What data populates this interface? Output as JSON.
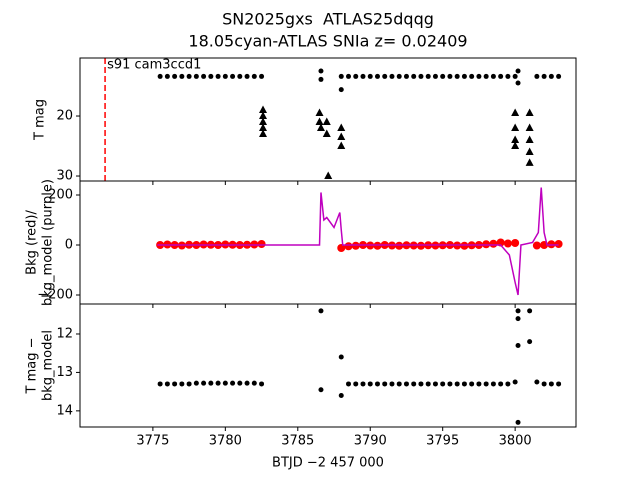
{
  "chart_data": [
    {
      "type": "scatter",
      "title": [
        "SN2025gxs  ATLAS25dqqg",
        "18.05cyan-ATLAS SNIa z= 0.02409"
      ],
      "ylabel": [
        "T mag"
      ],
      "annotation": "s91 cam3ccd1",
      "vline": 3771.7,
      "vline_color": "#ff0000",
      "xlim": [
        3769.97,
        3804.2
      ],
      "ylim": [
        30.83,
        10.33
      ],
      "yticks": [
        20,
        30
      ],
      "series": [
        {
          "color": "#000000",
          "marker": "circle",
          "x": [
            3775.5,
            3776,
            3776.5,
            3777,
            3777.5,
            3778,
            3778.5,
            3779,
            3779.5,
            3780,
            3780.5,
            3781,
            3781.5,
            3782,
            3782.5,
            3786.6,
            3786.6,
            3788,
            3788,
            3788.5,
            3789,
            3789.5,
            3790,
            3790.5,
            3791,
            3791.5,
            3792,
            3792.5,
            3793,
            3793.5,
            3794,
            3794.5,
            3795,
            3795.5,
            3796,
            3796.5,
            3797,
            3797.5,
            3798,
            3798.5,
            3799,
            3799.5,
            3800,
            3800.2,
            3800.2,
            3801.5,
            3802,
            3802.5,
            3803
          ],
          "values": [
            13.4,
            13.4,
            13.4,
            13.4,
            13.4,
            13.4,
            13.4,
            13.4,
            13.4,
            13.4,
            13.4,
            13.4,
            13.4,
            13.4,
            13.4,
            12.5,
            13.9,
            13.4,
            15.6,
            13.4,
            13.4,
            13.4,
            13.4,
            13.4,
            13.4,
            13.4,
            13.4,
            13.4,
            13.4,
            13.4,
            13.4,
            13.4,
            13.4,
            13.4,
            13.4,
            13.4,
            13.4,
            13.4,
            13.4,
            13.4,
            13.4,
            13.4,
            13.4,
            12.5,
            14.5,
            13.4,
            13.4,
            13.4,
            13.4
          ]
        },
        {
          "color": "#000000",
          "marker": "triangle",
          "x": [
            3782.6,
            3782.6,
            3782.6,
            3782.6,
            3782.6,
            3786.5,
            3786.5,
            3786.6,
            3787,
            3787,
            3787.1,
            3788,
            3788,
            3788,
            3800,
            3800,
            3800,
            3800,
            3801,
            3801,
            3801,
            3801,
            3801
          ],
          "values": [
            19,
            20,
            21,
            22,
            23,
            19.5,
            21,
            22,
            21,
            23,
            30,
            22,
            23.5,
            25,
            19.5,
            22,
            25,
            24,
            19.5,
            22,
            24,
            26,
            27.8
          ]
        }
      ]
    },
    {
      "type": "scatter",
      "ylabel": [
        "Bkg (red)/",
        "bkg_model (purple)"
      ],
      "xlim": [
        3769.97,
        3804.2
      ],
      "ylim": [
        -236,
        256
      ],
      "yticks": [
        200,
        0,
        {
          "value": -200,
          "label": "−200"
        }
      ],
      "series": [
        {
          "color": "#ff0000",
          "marker": "big-circle",
          "x": [
            3775.5,
            3776,
            3776.5,
            3777,
            3777.5,
            3778,
            3778.5,
            3779,
            3779.5,
            3780,
            3780.5,
            3781,
            3781.5,
            3782,
            3782.5,
            3788,
            3788.5,
            3789,
            3789.5,
            3790,
            3790.5,
            3791,
            3791.5,
            3792,
            3792.5,
            3793,
            3793.5,
            3794,
            3794.5,
            3795,
            3795.5,
            3796,
            3796.5,
            3797,
            3797.5,
            3798,
            3798.5,
            3799,
            3799.5,
            3800,
            3801.5,
            3802,
            3802.5,
            3803
          ],
          "values": [
            0,
            2,
            0,
            -2,
            1,
            0,
            2,
            1,
            0,
            2,
            1,
            0,
            1,
            2,
            4,
            -12,
            -5,
            -3,
            0,
            -2,
            -3,
            0,
            -2,
            -3,
            -1,
            -2,
            -3,
            -1,
            -2,
            -1,
            0,
            -2,
            -3,
            -1,
            0,
            3,
            5,
            10,
            6,
            8,
            -2,
            0,
            3,
            4
          ]
        },
        {
          "color": "#bf00bf",
          "marker": "line",
          "x": [
            3775.3,
            3782.6,
            3786.5,
            3786.6,
            3786.8,
            3787,
            3787.5,
            3787.9,
            3788,
            3788.1,
            3790,
            3795,
            3799,
            3799.6,
            3800,
            3800.2,
            3800.4,
            3801.2,
            3801.6,
            3801.8,
            3802,
            3802.2,
            3803
          ],
          "values": [
            0,
            0,
            0,
            210,
            100,
            110,
            70,
            130,
            60,
            0,
            0,
            0,
            0,
            -40,
            -150,
            -200,
            0,
            10,
            50,
            230,
            50,
            0,
            0
          ]
        }
      ]
    },
    {
      "type": "scatter",
      "ylabel": [
        "T mag −",
        "bkg_model"
      ],
      "xlabel": "BTJD −2 457 000",
      "xlim": [
        3769.97,
        3804.2
      ],
      "ylim": [
        14.42,
        11.22
      ],
      "xticks": [
        3775,
        3780,
        3785,
        3790,
        3795,
        3800
      ],
      "yticks": [
        12,
        13,
        14
      ],
      "series": [
        {
          "color": "#000000",
          "marker": "circle",
          "x": [
            3775.5,
            3776,
            3776.5,
            3777,
            3777.5,
            3778,
            3778.5,
            3779,
            3779.5,
            3780,
            3780.5,
            3781,
            3781.5,
            3782,
            3782.5,
            3786.6,
            3786.6,
            3788,
            3788,
            3788.5,
            3789,
            3789.5,
            3790,
            3790.5,
            3791,
            3791.5,
            3792,
            3792.5,
            3793,
            3793.5,
            3794,
            3794.5,
            3795,
            3795.5,
            3796,
            3796.5,
            3797,
            3797.5,
            3798,
            3798.5,
            3799,
            3799.5,
            3800,
            3800.2,
            3800.2,
            3800.2,
            3800.2,
            3801,
            3801,
            3801.5,
            3802,
            3802.5,
            3803
          ],
          "values": [
            13.3,
            13.3,
            13.3,
            13.3,
            13.3,
            13.28,
            13.28,
            13.28,
            13.28,
            13.28,
            13.28,
            13.28,
            13.28,
            13.28,
            13.3,
            11.4,
            13.45,
            12.6,
            13.6,
            13.3,
            13.3,
            13.3,
            13.3,
            13.3,
            13.3,
            13.3,
            13.3,
            13.3,
            13.3,
            13.3,
            13.3,
            13.3,
            13.3,
            13.3,
            13.3,
            13.3,
            13.3,
            13.3,
            13.3,
            13.3,
            13.3,
            13.3,
            13.25,
            11.4,
            11.6,
            12.3,
            14.3,
            11.4,
            12.2,
            13.25,
            13.3,
            13.3,
            13.3
          ]
        }
      ]
    }
  ]
}
